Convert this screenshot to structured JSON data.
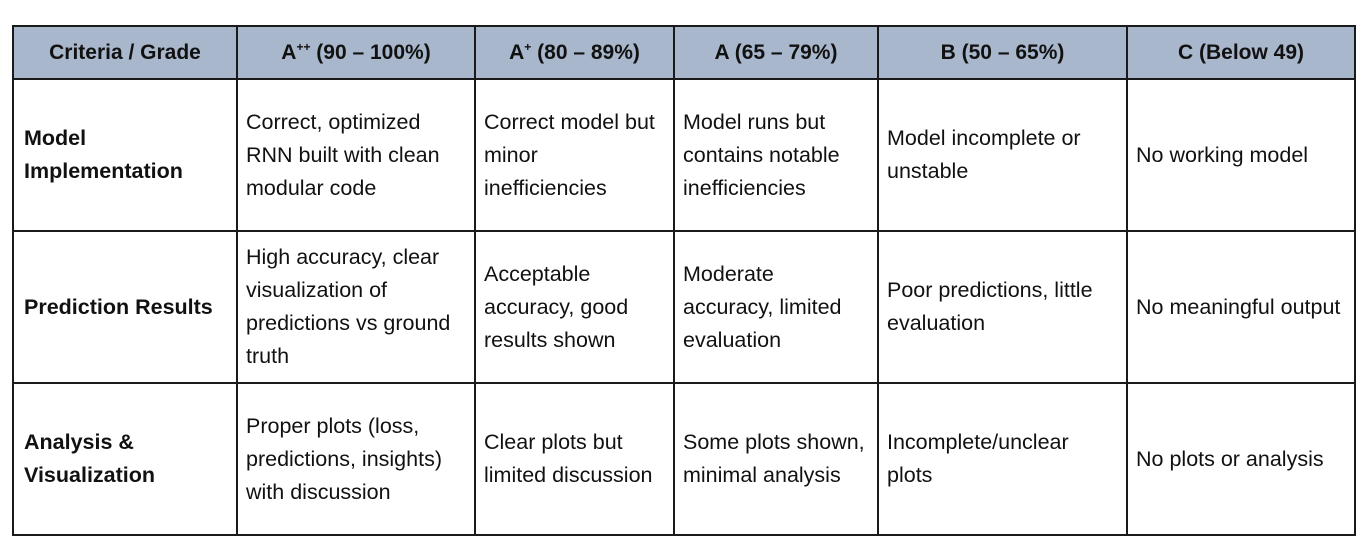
{
  "table": {
    "header": {
      "criteria": "Criteria / Grade",
      "grades": [
        {
          "base": "A",
          "sup": "++",
          "range": " (90 – 100%)"
        },
        {
          "base": "A",
          "sup": "+",
          "range": " (80 – 89%)"
        },
        {
          "base": "A",
          "sup": "",
          "range": " (65 – 79%)"
        },
        {
          "base": "B",
          "sup": "",
          "range": " (50 – 65%)"
        },
        {
          "base": "C",
          "sup": "",
          "range": " (Below 49)"
        }
      ]
    },
    "rows": [
      {
        "criteria": "Model Implementation",
        "cells": [
          "Correct, optimized RNN built with clean modular code",
          "Correct model but minor inefficiencies",
          "Model runs but contains notable inefficiencies",
          "Model incomplete or unstable",
          "No working model"
        ]
      },
      {
        "criteria": "Prediction Results",
        "cells": [
          "High accuracy, clear visualization of predictions vs ground truth",
          "Acceptable accuracy, good results shown",
          "Moderate accuracy, limited evaluation",
          "Poor predictions, little evaluation",
          "No meaningful output"
        ]
      },
      {
        "criteria": "Analysis & Visualization",
        "cells": [
          "Proper plots (loss, predictions, insights) with discussion",
          "Clear plots but limited discussion",
          "Some plots shown, minimal analysis",
          "Incomplete/unclear plots",
          "No plots or analysis"
        ]
      }
    ]
  }
}
